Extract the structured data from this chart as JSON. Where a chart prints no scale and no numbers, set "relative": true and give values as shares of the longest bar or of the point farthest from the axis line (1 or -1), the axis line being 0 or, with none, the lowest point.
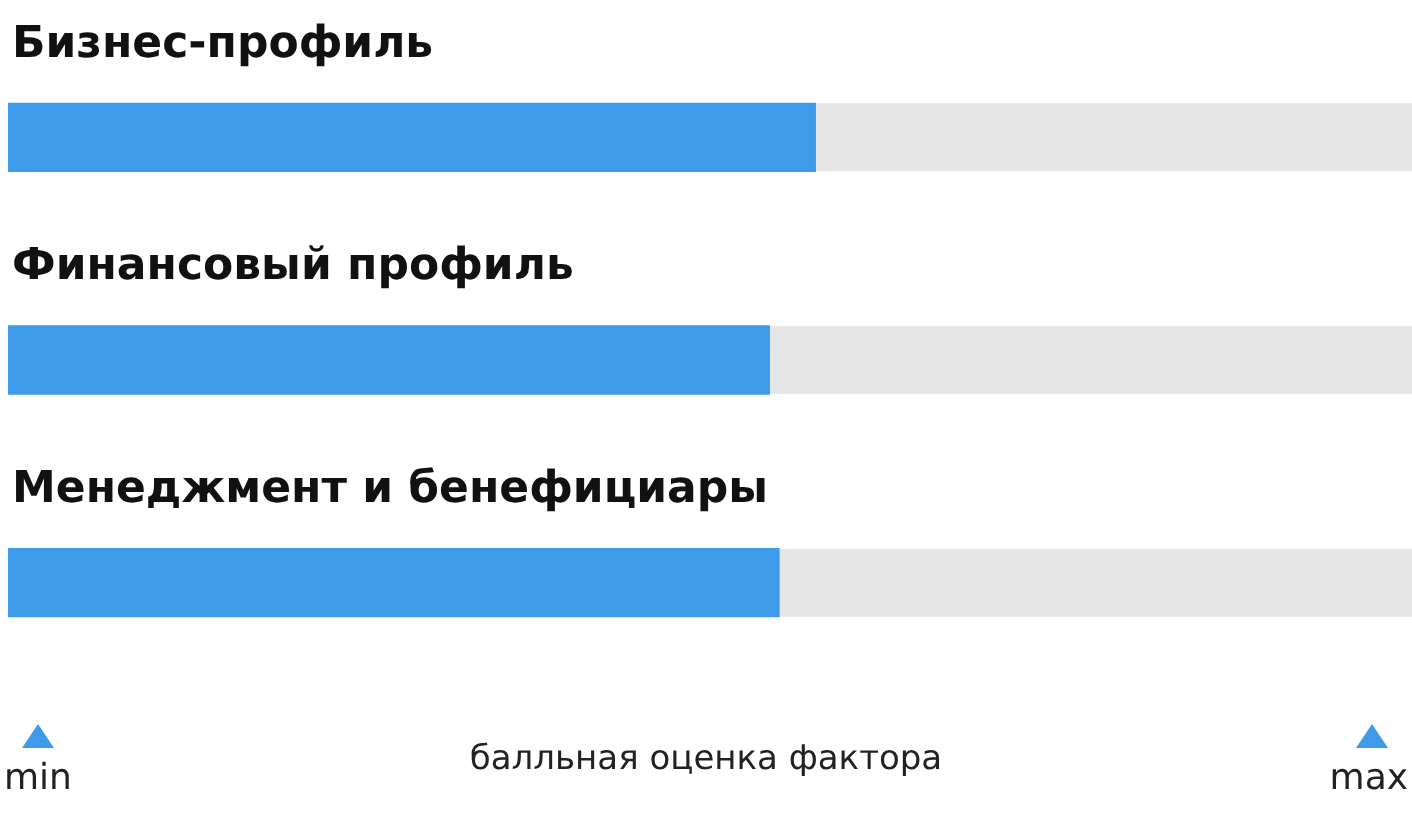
{
  "chart_data": {
    "type": "bar",
    "orientation": "horizontal",
    "relative": true,
    "categories": [
      "Бизнес-профиль",
      "Финансовый профиль",
      "Менеджмент и бенефициары"
    ],
    "values": [
      1,
      0.943,
      0.955
    ],
    "color": "#3d9be9",
    "xlabel": "балльная оценка фактора",
    "annotations": [
      "min",
      "max"
    ]
  }
}
